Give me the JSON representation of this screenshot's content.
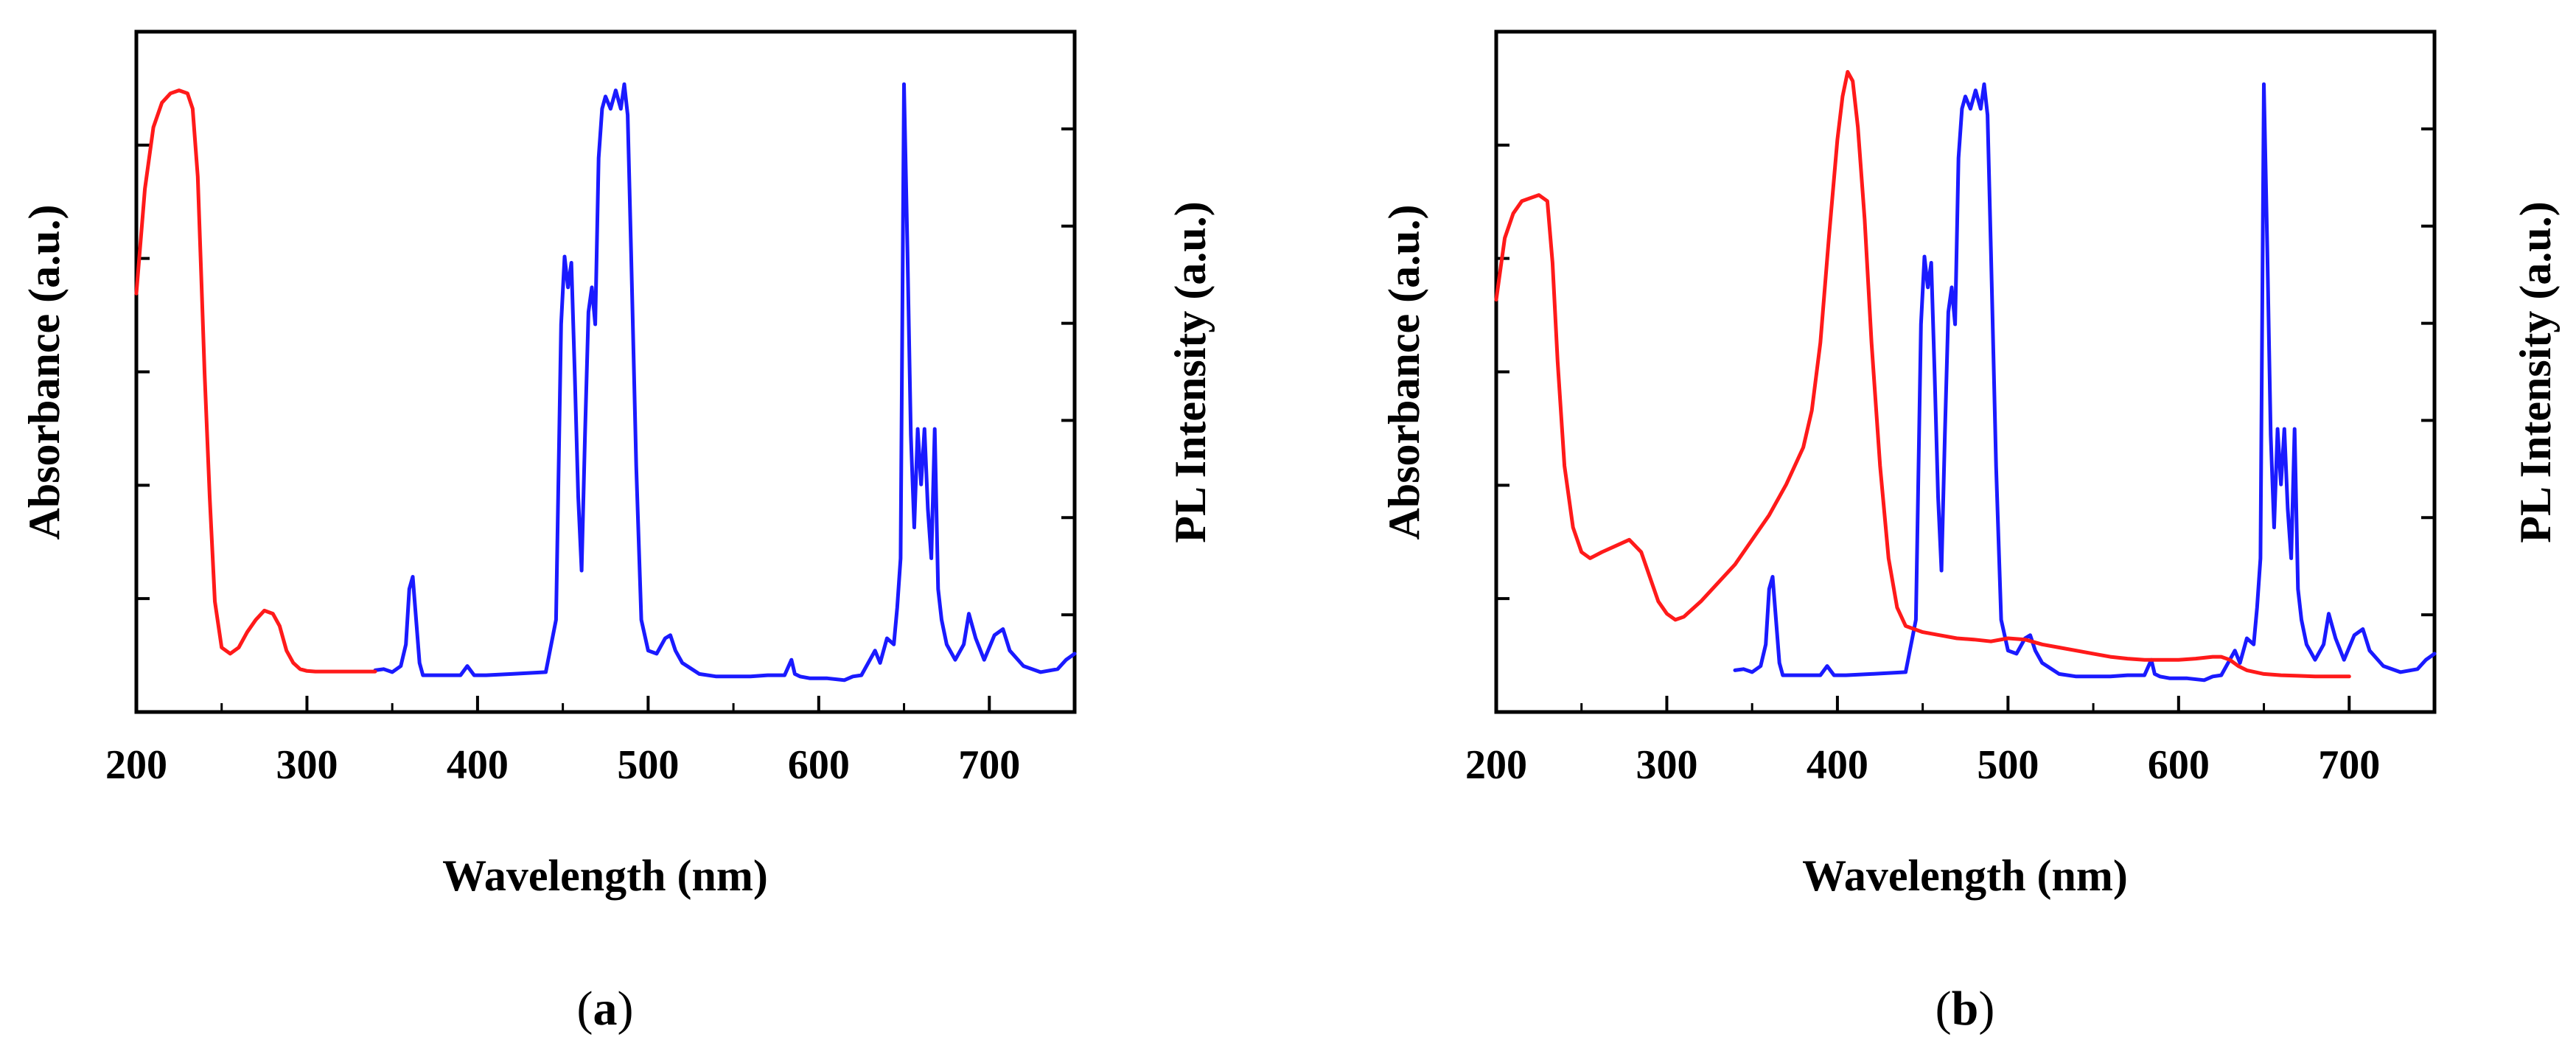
{
  "figure": {
    "colors": {
      "absorbance": "#ff1a1a",
      "pl": "#1a1aff",
      "axis": "#000000"
    }
  },
  "chart_data": [
    {
      "type": "line",
      "panel_label": "a",
      "xlabel": "Wavelength (nm)",
      "ylabel_left": "Absorbance (a.u.)",
      "ylabel_right": "PL Intensity (a.u.)",
      "xlim": [
        200,
        750
      ],
      "xticks": [
        200,
        300,
        400,
        500,
        600,
        700
      ],
      "grid": false,
      "series": [
        {
          "name": "Absorbance",
          "axis": "left",
          "color": "#ff1a1a",
          "ylim": [
            0,
            1
          ],
          "x": [
            200,
            205,
            210,
            215,
            220,
            225,
            230,
            233,
            236,
            238,
            240,
            243,
            246,
            250,
            255,
            260,
            265,
            270,
            275,
            280,
            284,
            288,
            292,
            296,
            300,
            305,
            310,
            320,
            330,
            340
          ],
          "y": [
            0.63,
            0.8,
            0.9,
            0.94,
            0.955,
            0.96,
            0.955,
            0.93,
            0.82,
            0.66,
            0.5,
            0.3,
            0.13,
            0.055,
            0.045,
            0.055,
            0.08,
            0.1,
            0.115,
            0.11,
            0.09,
            0.05,
            0.03,
            0.02,
            0.017,
            0.016,
            0.016,
            0.016,
            0.016,
            0.016
          ]
        },
        {
          "name": "PL Intensity",
          "axis": "right",
          "color": "#1a1aff",
          "ylim": [
            0,
            1
          ],
          "x": [
            340,
            345,
            350,
            355,
            358,
            360,
            362,
            364,
            366,
            368,
            372,
            380,
            390,
            394,
            398,
            405,
            420,
            440,
            446,
            449,
            451,
            453,
            455,
            457,
            459,
            461,
            463,
            465,
            467,
            469,
            471,
            473,
            475,
            478,
            481,
            484,
            486,
            488,
            490,
            493,
            496,
            500,
            505,
            510,
            513,
            516,
            520,
            530,
            540,
            550,
            560,
            570,
            580,
            584,
            586,
            589,
            595,
            605,
            615,
            620,
            625,
            630,
            633,
            636,
            640,
            644,
            646,
            648,
            650,
            652,
            654,
            656,
            658,
            660,
            662,
            664,
            666,
            668,
            670,
            672,
            675,
            680,
            685,
            688,
            692,
            697,
            703,
            708,
            712,
            720,
            730,
            740,
            745,
            750
          ],
          "y": [
            0.018,
            0.02,
            0.015,
            0.025,
            0.06,
            0.15,
            0.17,
            0.1,
            0.03,
            0.01,
            0.01,
            0.01,
            0.01,
            0.025,
            0.01,
            0.01,
            0.012,
            0.015,
            0.1,
            0.58,
            0.69,
            0.64,
            0.68,
            0.5,
            0.3,
            0.18,
            0.4,
            0.6,
            0.64,
            0.58,
            0.85,
            0.93,
            0.95,
            0.93,
            0.96,
            0.93,
            0.97,
            0.92,
            0.7,
            0.35,
            0.1,
            0.05,
            0.045,
            0.07,
            0.075,
            0.05,
            0.03,
            0.012,
            0.008,
            0.008,
            0.008,
            0.01,
            0.01,
            0.035,
            0.012,
            0.008,
            0.005,
            0.005,
            0.002,
            0.008,
            0.01,
            0.035,
            0.05,
            0.03,
            0.07,
            0.06,
            0.12,
            0.2,
            0.97,
            0.7,
            0.4,
            0.25,
            0.41,
            0.32,
            0.41,
            0.28,
            0.2,
            0.41,
            0.15,
            0.1,
            0.06,
            0.035,
            0.06,
            0.11,
            0.07,
            0.035,
            0.075,
            0.085,
            0.05,
            0.025,
            0.015,
            0.02,
            0.035,
            0.045
          ]
        }
      ]
    },
    {
      "type": "line",
      "panel_label": "b",
      "xlabel": "Wavelength (nm)",
      "ylabel_left": "Absorbance (a.u.)",
      "ylabel_right": "PL Intensity (a.u.)",
      "xlim": [
        200,
        750
      ],
      "xticks": [
        200,
        300,
        400,
        500,
        600,
        700
      ],
      "grid": false,
      "series": [
        {
          "name": "Absorbance",
          "axis": "left",
          "color": "#ff1a1a",
          "ylim": [
            0,
            1
          ],
          "x": [
            200,
            205,
            210,
            215,
            220,
            225,
            230,
            233,
            236,
            240,
            245,
            250,
            255,
            262,
            270,
            278,
            285,
            290,
            295,
            300,
            305,
            310,
            320,
            330,
            340,
            350,
            360,
            370,
            380,
            385,
            390,
            395,
            400,
            403,
            406,
            409,
            412,
            416,
            420,
            425,
            430,
            435,
            440,
            445,
            450,
            460,
            470,
            480,
            490,
            500,
            510,
            520,
            530,
            540,
            550,
            560,
            570,
            580,
            590,
            600,
            610,
            620,
            625,
            630,
            635,
            640,
            650,
            660,
            670,
            680,
            690,
            700
          ],
          "y": [
            0.62,
            0.72,
            0.76,
            0.78,
            0.785,
            0.79,
            0.78,
            0.68,
            0.52,
            0.35,
            0.25,
            0.21,
            0.2,
            0.21,
            0.22,
            0.23,
            0.21,
            0.17,
            0.13,
            0.11,
            0.1,
            0.105,
            0.13,
            0.16,
            0.19,
            0.23,
            0.27,
            0.32,
            0.38,
            0.44,
            0.55,
            0.72,
            0.88,
            0.95,
            0.99,
            0.975,
            0.9,
            0.75,
            0.55,
            0.35,
            0.2,
            0.12,
            0.09,
            0.085,
            0.08,
            0.075,
            0.07,
            0.068,
            0.065,
            0.07,
            0.068,
            0.06,
            0.055,
            0.05,
            0.045,
            0.04,
            0.037,
            0.035,
            0.035,
            0.035,
            0.037,
            0.04,
            0.04,
            0.035,
            0.025,
            0.018,
            0.012,
            0.01,
            0.009,
            0.008,
            0.008,
            0.008
          ]
        },
        {
          "name": "PL Intensity",
          "axis": "right",
          "color": "#1a1aff",
          "ylim": [
            0,
            1
          ],
          "x": [
            340,
            345,
            350,
            355,
            358,
            360,
            362,
            364,
            366,
            368,
            372,
            380,
            390,
            394,
            398,
            405,
            420,
            440,
            446,
            449,
            451,
            453,
            455,
            457,
            459,
            461,
            463,
            465,
            467,
            469,
            471,
            473,
            475,
            478,
            481,
            484,
            486,
            488,
            490,
            493,
            496,
            500,
            505,
            510,
            513,
            516,
            520,
            530,
            540,
            550,
            560,
            570,
            580,
            584,
            586,
            589,
            595,
            605,
            615,
            620,
            625,
            630,
            633,
            636,
            640,
            644,
            646,
            648,
            650,
            652,
            654,
            656,
            658,
            660,
            662,
            664,
            666,
            668,
            670,
            672,
            675,
            680,
            685,
            688,
            692,
            697,
            703,
            708,
            712,
            720,
            730,
            740,
            745,
            750
          ],
          "y": [
            0.018,
            0.02,
            0.015,
            0.025,
            0.06,
            0.15,
            0.17,
            0.1,
            0.03,
            0.01,
            0.01,
            0.01,
            0.01,
            0.025,
            0.01,
            0.01,
            0.012,
            0.015,
            0.1,
            0.58,
            0.69,
            0.64,
            0.68,
            0.5,
            0.3,
            0.18,
            0.4,
            0.6,
            0.64,
            0.58,
            0.85,
            0.93,
            0.95,
            0.93,
            0.96,
            0.93,
            0.97,
            0.92,
            0.7,
            0.35,
            0.1,
            0.05,
            0.045,
            0.07,
            0.075,
            0.05,
            0.03,
            0.012,
            0.008,
            0.008,
            0.008,
            0.01,
            0.01,
            0.035,
            0.012,
            0.008,
            0.005,
            0.005,
            0.002,
            0.008,
            0.01,
            0.035,
            0.05,
            0.03,
            0.07,
            0.06,
            0.12,
            0.2,
            0.97,
            0.7,
            0.4,
            0.25,
            0.41,
            0.32,
            0.41,
            0.28,
            0.2,
            0.41,
            0.15,
            0.1,
            0.06,
            0.035,
            0.06,
            0.11,
            0.07,
            0.035,
            0.075,
            0.085,
            0.05,
            0.025,
            0.015,
            0.02,
            0.035,
            0.045
          ]
        }
      ]
    }
  ]
}
